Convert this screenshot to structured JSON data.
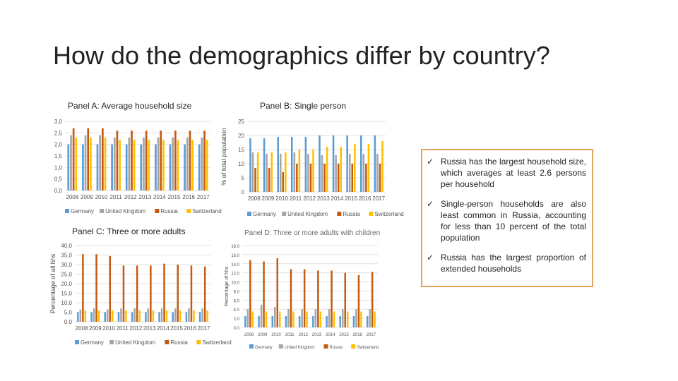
{
  "page": {
    "title": "How do the demographics differ by country?"
  },
  "panels": {
    "a": {
      "title": "Panel A: Average household size"
    },
    "b": {
      "title": "Panel B: Single person"
    },
    "c": {
      "title": "Panel C: Three or more adults"
    },
    "d": {
      "title": "Panel D: Three or more adults with children"
    }
  },
  "notes": [
    "Russia has the largest household size, which averages at least 2.6 persons per household",
    "Single-person households are also least common in Russia, accounting for less than 10 percent of the total population",
    "Russia has the largest proportion of extended households"
  ],
  "colors": {
    "Germany": "#5b9bd5",
    "United Kingdom": "#a5a5a5",
    "Russia": "#c55a11",
    "Switzerland": "#ffc000"
  },
  "chart_data": [
    {
      "type": "bar",
      "title": "Panel A: Average household size",
      "categories": [
        "2008",
        "2009",
        "2010",
        "2011",
        "2012",
        "2013",
        "2014",
        "2015",
        "2016",
        "2017"
      ],
      "series": [
        {
          "name": "Germany",
          "values": [
            2.0,
            2.0,
            2.0,
            2.0,
            2.0,
            2.0,
            2.0,
            2.0,
            2.0,
            2.0
          ]
        },
        {
          "name": "United Kingdom",
          "values": [
            2.4,
            2.4,
            2.4,
            2.3,
            2.3,
            2.3,
            2.3,
            2.3,
            2.3,
            2.3
          ]
        },
        {
          "name": "Russia",
          "values": [
            2.7,
            2.7,
            2.7,
            2.6,
            2.6,
            2.6,
            2.6,
            2.6,
            2.6,
            2.6
          ]
        },
        {
          "name": "Switzerland",
          "values": [
            2.3,
            2.3,
            2.3,
            2.2,
            2.2,
            2.2,
            2.2,
            2.2,
            2.2,
            2.2
          ]
        }
      ],
      "ylim": [
        0,
        3
      ],
      "yticks": [
        "0,0",
        "0,5",
        "1,0",
        "1,5",
        "2,0",
        "2,5",
        "3,0"
      ],
      "ylabel": "",
      "legend": "bottom"
    },
    {
      "type": "bar",
      "title": "Panel B: Single person",
      "categories": [
        "2008",
        "2009",
        "2010",
        "2011",
        "2012",
        "2013",
        "2014",
        "2015",
        "2016",
        "2017"
      ],
      "series": [
        {
          "name": "Germany",
          "values": [
            19,
            19,
            19.5,
            19.5,
            19.5,
            20,
            20,
            20,
            20,
            20
          ]
        },
        {
          "name": "United Kingdom",
          "values": [
            14,
            13.5,
            13.5,
            14,
            13.5,
            13,
            13,
            13.5,
            13.5,
            13.5
          ]
        },
        {
          "name": "Russia",
          "values": [
            8.5,
            8.5,
            7,
            10,
            10,
            10,
            10,
            10,
            10,
            10
          ]
        },
        {
          "name": "Switzerland",
          "values": [
            14,
            14,
            14,
            15,
            15,
            16,
            16,
            17,
            17,
            18
          ]
        }
      ],
      "ylim": [
        0,
        25
      ],
      "yticks": [
        "0",
        "5",
        "10",
        "15",
        "20",
        "25"
      ],
      "ylabel": "% of total population",
      "legend": "bottom"
    },
    {
      "type": "bar",
      "title": "Panel C: Three or more adults",
      "categories": [
        "2008",
        "2009",
        "2010",
        "2011",
        "2012",
        "2013",
        "2014",
        "2015",
        "2016",
        "2017"
      ],
      "series": [
        {
          "name": "Germany",
          "values": [
            5,
            5,
            5,
            5,
            5,
            5,
            5,
            5,
            5,
            5
          ]
        },
        {
          "name": "United Kingdom",
          "values": [
            6.5,
            7,
            6.5,
            7,
            7,
            7,
            7,
            7,
            7,
            7
          ]
        },
        {
          "name": "Russia",
          "values": [
            35.5,
            35.5,
            34.5,
            29.5,
            29.5,
            29.5,
            30.5,
            30,
            29.5,
            29
          ]
        },
        {
          "name": "Switzerland",
          "values": [
            6,
            6,
            6,
            6,
            6,
            6,
            6,
            6,
            6,
            6
          ]
        }
      ],
      "ylim": [
        0,
        40
      ],
      "yticks": [
        "0,0",
        "5,0",
        "10,0",
        "15,0",
        "20,0",
        "25,0",
        "30,0",
        "35,0",
        "40,0"
      ],
      "ylabel": "Percentage of all hhs",
      "legend": "bottom"
    },
    {
      "type": "bar",
      "title": "Panel D: Three or more adults with children",
      "categories": [
        "2008",
        "2009",
        "2010",
        "2011",
        "2012",
        "2013",
        "2014",
        "2015",
        "2016",
        "2017"
      ],
      "series": [
        {
          "name": "Germany",
          "values": [
            2.5,
            2.5,
            2.5,
            2.5,
            2.5,
            2.5,
            2.5,
            2.5,
            2.5,
            2.5
          ]
        },
        {
          "name": "United Kingdom",
          "values": [
            4,
            5,
            4.5,
            4,
            4,
            4,
            4,
            4,
            4,
            4
          ]
        },
        {
          "name": "Russia",
          "values": [
            14.8,
            14.5,
            15.2,
            12.8,
            12.8,
            12.5,
            12.5,
            12,
            11.5,
            12.2
          ]
        },
        {
          "name": "Switzerland",
          "values": [
            3.5,
            3.5,
            3.5,
            3.5,
            3.5,
            3.5,
            3.5,
            3.5,
            3.5,
            3.5
          ]
        }
      ],
      "ylim": [
        0,
        18
      ],
      "yticks": [
        "0.0",
        "2.0",
        "4.0",
        "6.0",
        "8.0",
        "10.0",
        "12.0",
        "14.0",
        "16.0",
        "18.0"
      ],
      "ylabel": "Percentage of hhs",
      "legend": "bottom"
    }
  ]
}
